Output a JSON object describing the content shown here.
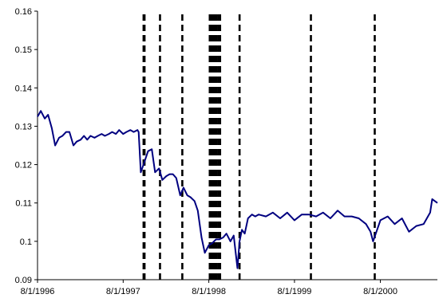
{
  "chart_data": {
    "type": "line",
    "title": "",
    "xlabel": "",
    "ylabel": "",
    "ylim": [
      0.09,
      0.16
    ],
    "yticks": [
      0.09,
      0.1,
      0.11,
      0.12,
      0.13,
      0.14,
      0.15,
      0.16
    ],
    "ytick_labels": [
      "0.09",
      "0.1",
      "0.11",
      "0.12",
      "0.13",
      "0.14",
      "0.15",
      "0.16"
    ],
    "xlim": [
      "1996-08-01",
      "2001-04-01"
    ],
    "xticks": [
      "1996-08-01",
      "1997-08-01",
      "1998-08-01",
      "1999-08-01",
      "2000-08-01"
    ],
    "xtick_labels": [
      "8/1/1996",
      "8/1/1997",
      "8/1/1998",
      "8/1/1999",
      "8/1/2000"
    ],
    "grid": false,
    "legend": "none",
    "series_color": "#000080",
    "series": [
      {
        "x": [
          "1996-08-01",
          "1996-08-15",
          "1996-09-01",
          "1996-09-15",
          "1996-10-01",
          "1996-10-15",
          "1996-11-01",
          "1996-11-15",
          "1996-12-01",
          "1996-12-15",
          "1997-01-01",
          "1997-01-15",
          "1997-02-01",
          "1997-02-15",
          "1997-03-01",
          "1997-03-15",
          "1997-04-01",
          "1997-04-15",
          "1997-05-01",
          "1997-05-15",
          "1997-06-01",
          "1997-06-15",
          "1997-07-01",
          "1997-07-15",
          "1997-08-01",
          "1997-08-15",
          "1997-09-01",
          "1997-09-15",
          "1997-10-01",
          "1997-10-06",
          "1997-10-15",
          "1997-11-01",
          "1997-11-15",
          "1997-12-01",
          "1997-12-15",
          "1998-01-01",
          "1998-01-15",
          "1998-02-01",
          "1998-02-15",
          "1998-03-01",
          "1998-03-15",
          "1998-04-01",
          "1998-04-15",
          "1998-05-01",
          "1998-05-15",
          "1998-06-01",
          "1998-06-15",
          "1998-07-01",
          "1998-07-15",
          "1998-08-01",
          "1998-08-15",
          "1998-09-01",
          "1998-09-15",
          "1998-10-01",
          "1998-10-15",
          "1998-11-01",
          "1998-11-15",
          "1998-12-01",
          "1998-12-10",
          "1998-12-20",
          "1999-01-01",
          "1999-01-15",
          "1999-02-01",
          "1999-02-15",
          "1999-03-01",
          "1999-04-01",
          "1999-05-01",
          "1999-06-01",
          "1999-07-01",
          "1999-08-01",
          "1999-09-01",
          "1999-10-01",
          "1999-11-01",
          "1999-12-01",
          "2000-01-01",
          "2000-02-01",
          "2000-03-01",
          "2000-04-01",
          "2000-05-01",
          "2000-06-01",
          "2000-06-20",
          "2000-07-01",
          "2000-08-01",
          "2000-09-01",
          "2000-10-01",
          "2000-11-01",
          "2000-12-01",
          "2001-01-01",
          "2001-02-01",
          "2001-03-01",
          "2001-03-10",
          "2001-04-01"
        ],
        "y": [
          0.1325,
          0.134,
          0.132,
          0.133,
          0.1295,
          0.125,
          0.127,
          0.1275,
          0.1285,
          0.1285,
          0.125,
          0.126,
          0.1265,
          0.1275,
          0.1265,
          0.1275,
          0.127,
          0.1275,
          0.128,
          0.1275,
          0.128,
          0.1285,
          0.128,
          0.129,
          0.128,
          0.1285,
          0.129,
          0.1285,
          0.129,
          0.1285,
          0.118,
          0.121,
          0.1235,
          0.124,
          0.118,
          0.119,
          0.116,
          0.117,
          0.1175,
          0.1175,
          0.1165,
          0.112,
          0.114,
          0.112,
          0.1115,
          0.1105,
          0.108,
          0.101,
          0.097,
          0.099,
          0.0995,
          0.1005,
          0.1005,
          0.101,
          0.102,
          0.1,
          0.1015,
          0.093,
          0.1,
          0.103,
          0.102,
          0.106,
          0.107,
          0.1065,
          0.107,
          0.1065,
          0.1075,
          0.106,
          0.1075,
          0.1055,
          0.107,
          0.107,
          0.1065,
          0.1075,
          0.106,
          0.108,
          0.1065,
          0.1065,
          0.106,
          0.1045,
          0.1025,
          0.1,
          0.1055,
          0.1065,
          0.1045,
          0.106,
          0.1025,
          0.104,
          0.1045,
          0.1075,
          0.111,
          0.11
        ]
      }
    ],
    "vlines": [
      "1997-10-27",
      "1997-10-29",
      "1997-10-31",
      "1998-01-05",
      "1998-04-10",
      "1998-08-05",
      "1998-08-10",
      "1998-08-17",
      "1998-08-21",
      "1998-08-28",
      "1998-09-02",
      "1998-09-10",
      "1998-09-18",
      "1998-12-10",
      "1999-10-10",
      "2000-07-08"
    ]
  }
}
